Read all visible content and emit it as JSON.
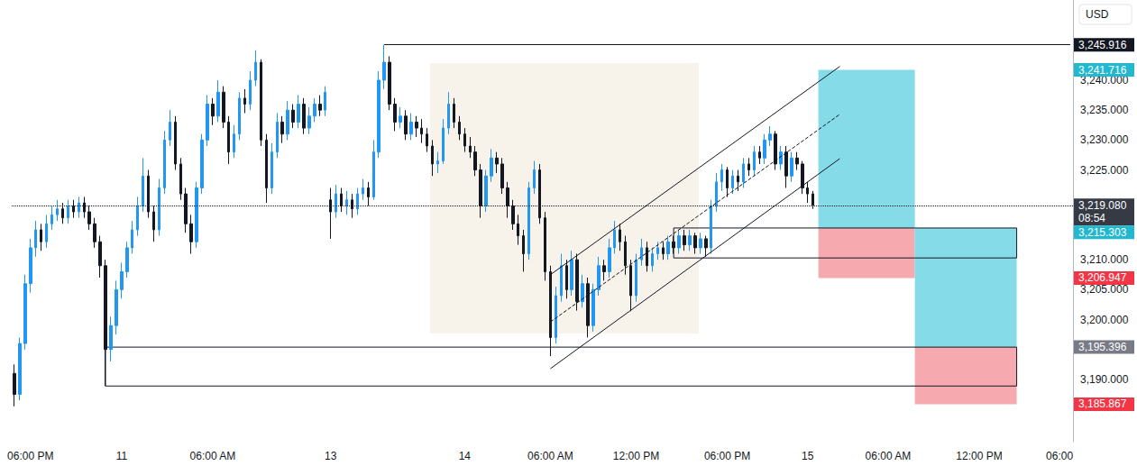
{
  "chart_data": {
    "type": "candlestick",
    "currency": "USD",
    "categories": [
      null,
      null,
      null,
      "06:00 PM",
      null,
      null,
      null,
      null,
      null,
      null,
      null,
      null,
      null,
      null,
      null,
      null,
      null,
      null,
      null,
      null,
      "11",
      null,
      null,
      null,
      null,
      null,
      null,
      null,
      null,
      null,
      null,
      null,
      null,
      null,
      null,
      null,
      null,
      "06:00 AM",
      null,
      null,
      null,
      null,
      null,
      null,
      null,
      null,
      null,
      null,
      null,
      null,
      null,
      null,
      null,
      null,
      null,
      null,
      null,
      null,
      null,
      "13",
      null,
      null,
      null,
      null,
      null,
      null,
      null,
      null,
      null,
      null,
      null,
      null,
      null,
      null,
      null,
      null,
      null,
      null,
      null,
      null,
      null,
      null,
      null,
      null,
      "14",
      null,
      null,
      null,
      null,
      null,
      null,
      null,
      null,
      null,
      null,
      null,
      null,
      null,
      null,
      null,
      "06:00 AM",
      null,
      null,
      null,
      null,
      null,
      null,
      null,
      null,
      null,
      null,
      null,
      null,
      null,
      null,
      null,
      "12:00 PM",
      null,
      null,
      null,
      null,
      null,
      null,
      null,
      null,
      null,
      null,
      null,
      null,
      null,
      null,
      null,
      null,
      "06:00 PM",
      null,
      null,
      null,
      null,
      null,
      null,
      null,
      null,
      null,
      null,
      null,
      null,
      null,
      null,
      "15",
      null,
      null,
      null,
      null,
      null,
      null,
      null,
      null,
      null,
      null,
      null,
      null,
      null,
      null,
      "06:00 AM",
      null,
      null,
      null,
      null,
      null,
      null,
      null,
      null,
      null,
      null,
      null,
      null,
      null,
      null,
      null,
      null,
      "12:00 PM",
      null,
      null,
      null,
      null,
      null,
      null,
      null,
      null,
      null,
      null,
      null,
      null,
      null,
      null,
      "06:00",
      null,
      null
    ],
    "open": [
      3191,
      3187.5,
      3196,
      3206,
      3212,
      3215,
      3213,
      3216,
      3217.5,
      3218.5,
      3217,
      3219,
      3218,
      3219.5,
      3218,
      3216,
      3213,
      3209,
      3195,
      3199,
      3205,
      3208,
      3212,
      3215,
      3219,
      3224,
      3218,
      3215,
      3222,
      3230,
      3233,
      3226,
      3221,
      3216,
      3213,
      3222,
      3230,
      3236,
      3234,
      3238,
      3233,
      3228,
      3231,
      3237,
      3236,
      3240,
      3243,
      3230,
      3222,
      3228,
      3233,
      3231,
      3235,
      3233,
      3236,
      3232,
      3234,
      3236,
      3235,
      3220,
      3218,
      3221,
      3219,
      3220,
      3218.5,
      3221,
      3222,
      3220.5,
      3228,
      3240,
      3243,
      3236,
      3233,
      3234,
      3231,
      3233,
      3232,
      3231,
      3229,
      3226,
      3226.5,
      3232,
      3236,
      3233,
      3231,
      3229,
      3228,
      3225,
      3219,
      3224,
      3227,
      3226,
      3222,
      3219,
      3216,
      3214,
      3211,
      3222,
      3225,
      3217,
      3208,
      3197,
      3204,
      3209,
      3205,
      3210,
      3203,
      3206,
      3199,
      3205,
      3209,
      3208,
      3212,
      3215,
      3213,
      3209,
      3204,
      3210,
      3212,
      3209,
      3211,
      3212,
      3211,
      3213,
      3212,
      3214,
      3212.5,
      3214,
      3212,
      3213.5,
      3212,
      3219,
      3223,
      3225,
      3222,
      3224,
      3223,
      3226,
      3225,
      3228,
      3227,
      3230,
      3231,
      3226,
      3228,
      3224,
      3227,
      3226,
      3222,
      3221,
      null,
      null,
      null,
      null,
      null,
      null,
      null,
      null,
      null,
      null,
      null,
      null,
      null,
      null,
      null,
      null,
      null,
      null,
      null,
      null,
      null,
      null,
      null,
      null,
      null,
      null,
      null,
      null,
      null,
      null,
      null,
      null,
      null,
      null,
      null,
      null,
      null,
      null,
      null,
      null,
      null,
      null,
      null,
      null,
      null,
      null,
      null,
      null
    ],
    "high": [
      3192.5,
      3197,
      3207.5,
      3213.5,
      3216.5,
      3216,
      3217.5,
      3219,
      3220,
      3219.5,
      3220,
      3220,
      3220.5,
      3220.5,
      3219,
      3217,
      3214,
      3210,
      3200.5,
      3206.5,
      3209.5,
      3213,
      3216.5,
      3220.5,
      3227,
      3225,
      3219,
      3223.5,
      3231.5,
      3235,
      3234,
      3227,
      3222,
      3217.5,
      3223,
      3231,
      3237.5,
      3237,
      3240,
      3239,
      3234,
      3232.5,
      3238,
      3238.5,
      3241.5,
      3245,
      3243.5,
      3231,
      3229.5,
      3234.5,
      3234,
      3236.5,
      3236,
      3237.5,
      3237,
      3235.5,
      3237,
      3237.5,
      3239,
      3222,
      3222.5,
      3222,
      3221.5,
      3221,
      3222,
      3223.5,
      3223,
      3230,
      3241.5,
      3245.916,
      3244,
      3237,
      3235.5,
      3235,
      3234.5,
      3234,
      3233.5,
      3232,
      3230,
      3228,
      3233.5,
      3238,
      3237,
      3234,
      3232,
      3230.5,
      3229,
      3226,
      3225,
      3228.5,
      3228,
      3227,
      3223,
      3220,
      3217.5,
      3215,
      3223,
      3226.5,
      3226,
      3218,
      3209,
      3205.5,
      3211,
      3210,
      3211.5,
      3211,
      3207.5,
      3207,
      3206,
      3210.5,
      3210,
      3213.5,
      3216.5,
      3216,
      3214,
      3210,
      3211,
      3213.5,
      3213,
      3212,
      3213,
      3213,
      3214,
      3214,
      3215,
      3215,
      3215,
      3214.5,
      3214.5,
      3214,
      3220,
      3224.5,
      3226,
      3225.5,
      3225,
      3225,
      3227,
      3227,
      3229,
      3229,
      3231,
      3232.3,
      3231.5,
      3229,
      3229,
      3228,
      3228,
      3226.5,
      3223,
      3221.5,
      null,
      null,
      null,
      null,
      null,
      null,
      null,
      null,
      null,
      null,
      null,
      null,
      null,
      null,
      null,
      null,
      null,
      null,
      null,
      null,
      null,
      null,
      null,
      null,
      null,
      null,
      null,
      null,
      null,
      null,
      null,
      null,
      null,
      null,
      null,
      null,
      null,
      null,
      null,
      null,
      null,
      null,
      null,
      null,
      null,
      null,
      null,
      null
    ],
    "low": [
      3185.5,
      3186.5,
      3195,
      3204.5,
      3210.5,
      3211.5,
      3212,
      3215,
      3216.5,
      3216,
      3216,
      3217,
      3217,
      3217,
      3215,
      3212,
      3207,
      3188.9,
      3193,
      3197.5,
      3203.5,
      3207,
      3211,
      3214,
      3218,
      3217,
      3213,
      3214,
      3221,
      3229,
      3225,
      3220,
      3214.5,
      3211,
      3212,
      3221,
      3229,
      3232.5,
      3233,
      3232,
      3226,
      3227,
      3230,
      3234.5,
      3235,
      3239,
      3229,
      3219.5,
      3221,
      3227,
      3229.5,
      3230,
      3232,
      3232,
      3231,
      3231,
      3233,
      3234,
      3234,
      3213.5,
      3217,
      3218,
      3217.5,
      3217,
      3217.5,
      3220,
      3219,
      3220,
      3227,
      3238.5,
      3235,
      3231.5,
      3232,
      3230,
      3230,
      3230.5,
      3229.5,
      3228,
      3224,
      3224.5,
      3226,
      3231,
      3232,
      3230,
      3228,
      3227,
      3224,
      3217,
      3218,
      3223,
      3224.5,
      3221,
      3217,
      3215,
      3212.5,
      3208,
      3210,
      3221,
      3216,
      3206.5,
      3193.9,
      3196,
      3203,
      3203.5,
      3204,
      3201.5,
      3202,
      3197,
      3198,
      3204,
      3206.5,
      3207,
      3211,
      3211.5,
      3207.5,
      3201.4,
      3203,
      3209,
      3208,
      3208,
      3210,
      3210,
      3210,
      3211,
      3211,
      3211.5,
      3211.5,
      3211,
      3211,
      3210.5,
      3211,
      3218,
      3221.5,
      3220.5,
      3221,
      3221.5,
      3222,
      3224,
      3224,
      3226,
      3226,
      3229,
      3225,
      3225,
      3222,
      3223,
      3225,
      3221,
      3219.5,
      3218.5,
      null,
      null,
      null,
      null,
      null,
      null,
      null,
      null,
      null,
      null,
      null,
      null,
      null,
      null,
      null,
      null,
      null,
      null,
      null,
      null,
      null,
      null,
      null,
      null,
      null,
      null,
      null,
      null,
      null,
      null,
      null,
      null,
      null,
      null,
      null,
      null,
      null,
      null,
      null,
      null,
      null,
      null,
      null,
      null,
      null,
      null,
      null,
      null
    ],
    "close": [
      3187.5,
      3196,
      3206,
      3212,
      3215,
      3213,
      3216,
      3217.5,
      3218.5,
      3217,
      3219,
      3218,
      3219.5,
      3218,
      3216,
      3213,
      3209,
      3195,
      3199,
      3205,
      3208,
      3212,
      3215,
      3219,
      3224,
      3218,
      3215,
      3222,
      3230,
      3233,
      3226,
      3221,
      3216,
      3213,
      3222,
      3230,
      3236,
      3234,
      3238,
      3233,
      3228,
      3231,
      3237,
      3236,
      3240,
      3243,
      3230,
      3222,
      3228,
      3233,
      3231,
      3235,
      3233,
      3236,
      3232,
      3234,
      3236,
      3235,
      3238,
      3218,
      3221,
      3219,
      3220,
      3218.5,
      3221,
      3222,
      3220.5,
      3228,
      3240,
      3243,
      3236,
      3233,
      3234,
      3231,
      3233,
      3232,
      3231,
      3229,
      3226,
      3226.5,
      3232,
      3236,
      3233,
      3231,
      3229,
      3228,
      3225,
      3219,
      3224,
      3227,
      3226,
      3222,
      3219,
      3216,
      3214,
      3211,
      3222,
      3225,
      3217,
      3208,
      3197,
      3204,
      3209,
      3205,
      3210,
      3203,
      3206,
      3199,
      3205,
      3209,
      3208,
      3212,
      3215,
      3213,
      3209,
      3204,
      3210,
      3212,
      3209,
      3211,
      3212,
      3211,
      3213,
      3212,
      3214,
      3212.5,
      3214,
      3212,
      3213.5,
      3212,
      3219,
      3223,
      3225,
      3222,
      3224,
      3223,
      3226,
      3225,
      3228,
      3227,
      3230,
      3231,
      3226,
      3228,
      3224,
      3227,
      3226,
      3222,
      3221,
      3219.08,
      null,
      null,
      null,
      null,
      null,
      null,
      null,
      null,
      null,
      null,
      null,
      null,
      null,
      null,
      null,
      null,
      null,
      null,
      null,
      null,
      null,
      null,
      null,
      null,
      null,
      null,
      null,
      null,
      null,
      null,
      null,
      null,
      null,
      null,
      null,
      null,
      null,
      null,
      null,
      null,
      null,
      null,
      null,
      null,
      null,
      null,
      null,
      null
    ],
    "color": {
      "up": "#2196f3",
      "down": "#131722"
    },
    "ylim": [
      3179.6,
      3253.4
    ],
    "yticks": [
      {
        "value": 3190,
        "label": "3,190.000"
      },
      {
        "value": 3200,
        "label": "3,200.000"
      },
      {
        "value": 3205,
        "label": "3,205.000"
      },
      {
        "value": 3210,
        "label": "3,210.000"
      },
      {
        "value": 3225,
        "label": "3,225.000"
      },
      {
        "value": 3230,
        "label": "3,230.000"
      },
      {
        "value": 3235,
        "label": "3,235.000"
      },
      {
        "value": 3240,
        "label": "3,240.000"
      }
    ],
    "grid": false,
    "last_price": 3219.08,
    "price_labels": [
      {
        "value": 3245.916,
        "label": "3,245.916",
        "color": "#131722"
      },
      {
        "value": 3241.716,
        "label": "3,241.716",
        "color": "#22b8cf"
      },
      {
        "value": 3219.08,
        "label": "3,219.080",
        "countdown": "08:54",
        "color": "#363a45"
      },
      {
        "value": 3215.303,
        "label": "3,215.303",
        "color": "#22b8cf"
      },
      {
        "value": 3206.947,
        "label": "3,206.947",
        "color": "#f23645"
      },
      {
        "value": 3195.396,
        "label": "3,195.396",
        "color": "#787b86"
      },
      {
        "value": 3185.867,
        "label": "3,185.867",
        "color": "#f23645"
      }
    ],
    "horizontal_line": {
      "x": [
        69,
        197
      ],
      "value": 3245.916
    },
    "channel": {
      "x": [
        100,
        154
      ],
      "lower": [
        3191.8,
        3226.9
      ],
      "upper": [
        3207.5,
        3242.3
      ],
      "middle": [
        3199.6,
        3234.3
      ]
    },
    "boxes": [
      {
        "x": [
          123,
          187
        ],
        "y": [
          3210.3,
          3215.303
        ]
      },
      {
        "x": [
          17,
          187
        ],
        "y": [
          3188.9,
          3195.396
        ]
      }
    ],
    "positions": [
      {
        "x": [
          150,
          168
        ],
        "entry": 3215.303,
        "target": 3241.716,
        "stop": 3206.947
      },
      {
        "x": [
          168,
          187
        ],
        "entry": 3195.396,
        "target": 3215.303,
        "stop": 3185.867
      }
    ]
  }
}
